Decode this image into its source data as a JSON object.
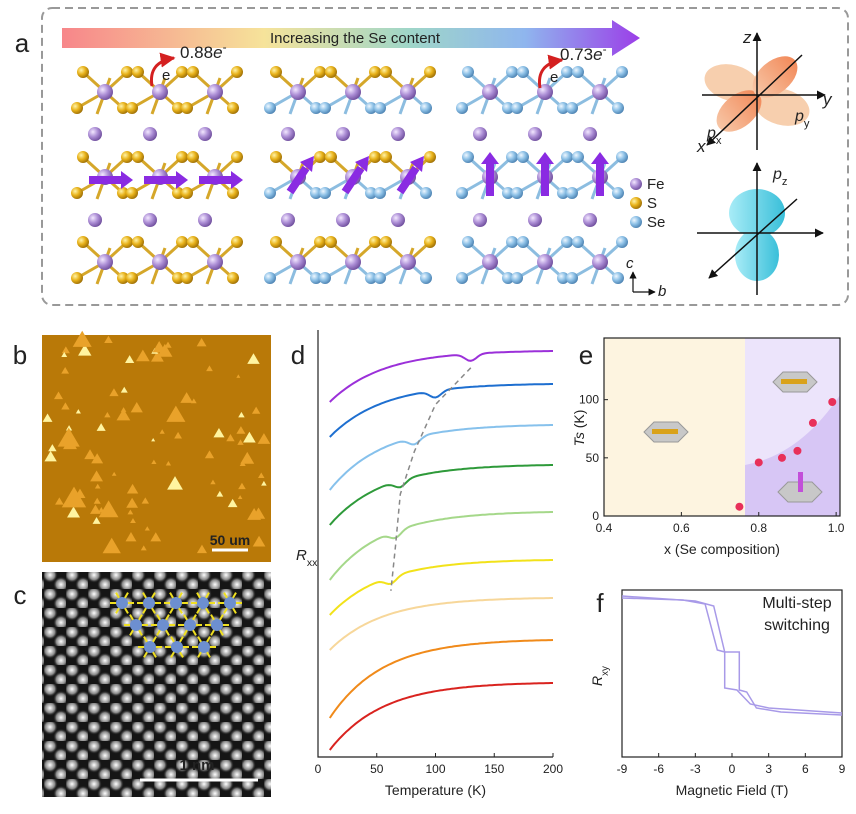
{
  "panels": {
    "a": {
      "label": "a",
      "banner": "Increasing the Se content",
      "charges": [
        {
          "value": "0.88",
          "unit": "e",
          "sign": "-"
        },
        {
          "value": "0.73",
          "unit": "e",
          "sign": "-"
        }
      ],
      "electron": "e",
      "legend": [
        "Fe",
        "S",
        "Se"
      ],
      "orbital_axes": {
        "z": "z",
        "y": "y",
        "x": "x"
      },
      "orbitals": [
        {
          "base": "p",
          "sub": "x"
        },
        {
          "base": "p",
          "sub": "y"
        },
        {
          "base": "p",
          "sub": "z"
        }
      ],
      "crystal_axes": {
        "c": "c",
        "b": "b"
      }
    },
    "b": {
      "label": "b",
      "scale_bar": "50 um"
    },
    "c": {
      "label": "c",
      "scale_bar": "1 nm"
    },
    "d": {
      "label": "d",
      "y_label": {
        "base": "R",
        "sub": "xx"
      },
      "x_label": "Temperature (K)",
      "xlim": [
        0,
        200
      ],
      "xticks": [
        0,
        50,
        100,
        150,
        200
      ]
    },
    "e": {
      "label": "e",
      "y_label": {
        "base": "T",
        "sub": "s",
        "unit": " (K)"
      },
      "x_label": "x (Se composition)",
      "xlim": [
        0.4,
        1.01
      ],
      "xticks": [
        0.4,
        0.6,
        0.8,
        {
          "value": 1,
          "label": "1.0"
        }
      ],
      "ylim": [
        0,
        153
      ],
      "yticks": [
        0,
        50,
        100
      ],
      "x": [
        0.75,
        0.8,
        0.86,
        0.9,
        0.94,
        0.99
      ],
      "y": [
        8,
        46,
        50,
        56,
        80,
        98
      ]
    },
    "f": {
      "label": "f",
      "annotation": [
        "Multi-step",
        "switching"
      ],
      "y_label": {
        "base": "R",
        "sub": "xy"
      },
      "x_label": "Magnetic Field (T)",
      "xlim": [
        -9,
        9
      ],
      "xticks": [
        -9,
        -6,
        -3,
        0,
        3,
        6,
        9
      ]
    }
  }
}
